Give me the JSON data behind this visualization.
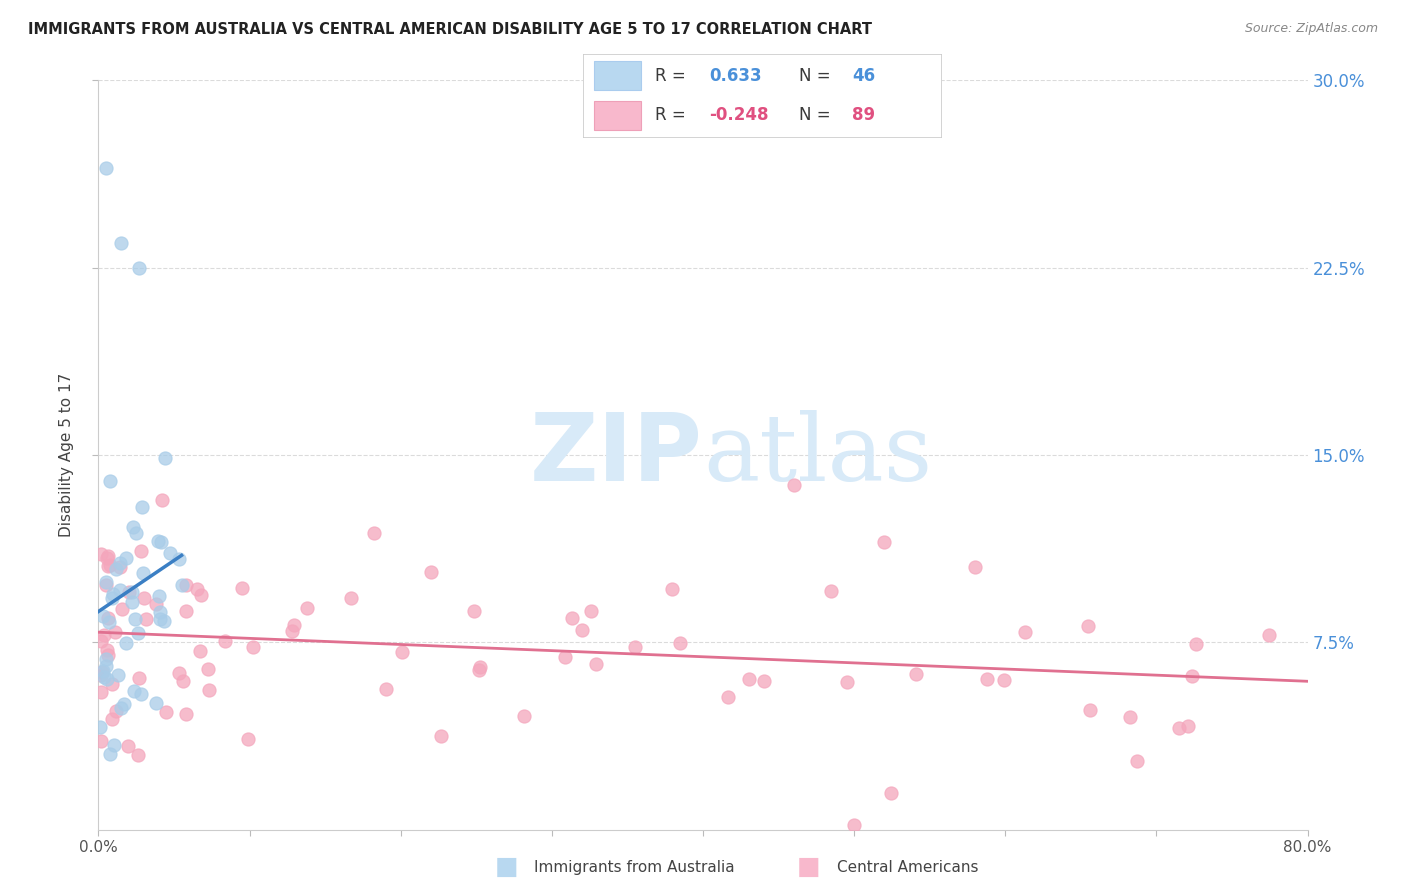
{
  "title": "IMMIGRANTS FROM AUSTRALIA VS CENTRAL AMERICAN DISABILITY AGE 5 TO 17 CORRELATION CHART",
  "source": "Source: ZipAtlas.com",
  "ylabel": "Disability Age 5 to 17",
  "xlim": [
    0.0,
    0.8
  ],
  "ylim": [
    0.0,
    0.3
  ],
  "yticks": [
    0.075,
    0.15,
    0.225,
    0.3
  ],
  "ytick_labels": [
    "7.5%",
    "15.0%",
    "22.5%",
    "30.0%"
  ],
  "xtick_positions": [
    0.0,
    0.1,
    0.2,
    0.3,
    0.4,
    0.5,
    0.6,
    0.7,
    0.8
  ],
  "xtick_labels": [
    "0.0%",
    "",
    "",
    "",
    "",
    "",
    "",
    "",
    "80.0%"
  ],
  "blue_R": 0.633,
  "blue_N": 46,
  "pink_R": -0.248,
  "pink_N": 89,
  "blue_dot_color": "#a8cce8",
  "pink_dot_color": "#f4a6bc",
  "blue_line_color": "#3b7fc4",
  "pink_line_color": "#e07090",
  "right_axis_color": "#4a90d9",
  "watermark_color": "#d8eaf8",
  "legend_border_color": "#cccccc",
  "blue_legend_color": "#b8d8f0",
  "pink_legend_color": "#f8b8cc",
  "legend_text_color": "#3a3a3a",
  "legend_value_color": "#4a90d9",
  "pink_legend_value_color": "#e05080"
}
